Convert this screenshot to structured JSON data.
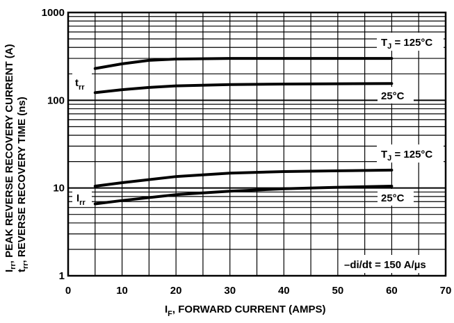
{
  "chart_data": {
    "type": "line",
    "title": "",
    "xlabel": "I",
    "xlabel_sub": "F",
    "xlabel_rest": ", FORWARD CURRENT (AMPS)",
    "ylabel_line1": {
      "main": "I",
      "sub": "rr",
      "rest": ", PEAK REVERSE RECOVERY CURRENT (A)"
    },
    "ylabel_line2": {
      "main": "t",
      "sub": "rr",
      "rest": ", REVERSE RECOVERY TIME (ns)"
    },
    "xlim": [
      0,
      70
    ],
    "ylim": [
      1,
      1000
    ],
    "yscale": "log",
    "grid": true,
    "x_ticks": [
      0,
      10,
      20,
      30,
      40,
      50,
      60,
      70
    ],
    "x_tick_labels": [
      "0",
      "10",
      "20",
      "30",
      "40",
      "50",
      "60",
      "70"
    ],
    "y_ticks": [
      1,
      10,
      100,
      1000
    ],
    "y_tick_labels": [
      "1",
      "10",
      "100",
      "1000"
    ],
    "series": [
      {
        "group": "trr",
        "x": [
          5,
          10,
          15,
          20,
          30,
          40,
          50,
          60
        ],
        "y": [
          230,
          260,
          285,
          295,
          300,
          300,
          300,
          300
        ]
      },
      {
        "group": "trr",
        "x": [
          5,
          10,
          15,
          20,
          30,
          40,
          50,
          60
        ],
        "y": [
          122,
          132,
          140,
          146,
          151,
          153,
          154,
          155
        ]
      },
      {
        "group": "Irr",
        "x": [
          5,
          10,
          20,
          30,
          40,
          50,
          60
        ],
        "y": [
          10.5,
          11.5,
          13.5,
          14.8,
          15.4,
          15.7,
          16
        ]
      },
      {
        "group": "Irr",
        "x": [
          5,
          10,
          20,
          30,
          40,
          50,
          60
        ],
        "y": [
          6.6,
          7.2,
          8.4,
          9.2,
          9.8,
          10.2,
          10.5
        ]
      }
    ],
    "annotations": {
      "trr_label": {
        "main": "t",
        "sub": "rr"
      },
      "irr_label": {
        "main": "I",
        "sub": "rr"
      },
      "trr_hot": {
        "main": "T",
        "sub": "J",
        "rest": " = 125°C"
      },
      "trr_cold": "25°C",
      "irr_hot": {
        "main": "T",
        "sub": "J",
        "rest": " = 125°C"
      },
      "irr_cold": "25°C",
      "condition": "–di/dt = 150 A/µs"
    }
  }
}
